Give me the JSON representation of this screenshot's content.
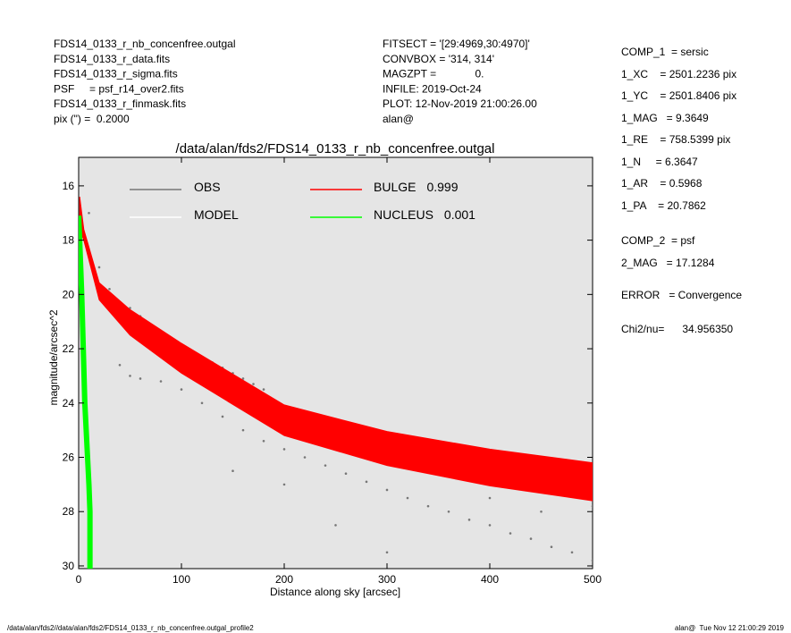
{
  "header": {
    "left": [
      "FDS14_0133_r_nb_concenfree.outgal",
      "FDS14_0133_r_data.fits",
      "FDS14_0133_r_sigma.fits",
      "PSF     = psf_r14_over2.fits",
      "FDS14_0133_r_finmask.fits",
      "pix (\") =  0.2000"
    ],
    "middle": [
      "FITSECT = '[29:4969,30:4970]'",
      "CONVBOX = '314, 314'",
      "MAGZPT =             0.",
      "INFILE: 2019-Oct-24",
      "PLOT: 12-Nov-2019 21:00:26.00",
      "alan@"
    ],
    "right": [
      "COMP_1  = sersic",
      "1_XC    = 2501.2236 pix",
      "1_YC    = 2501.8406 pix",
      "1_MAG   = 9.3649",
      "1_RE    = 758.5399 pix",
      "1_N     = 6.3647",
      "1_AR    = 0.5968",
      "1_PA    = 20.7862",
      "COMP_2  = psf",
      "2_MAG   = 17.1284",
      "ERROR   = Convergence",
      "Chi2/nu=      34.956350"
    ]
  },
  "footer": {
    "left": "/data/alan/fds2//data/alan/fds2/FDS14_0133_r_nb_concenfree.outgal_profile2",
    "right": "alan@  Tue Nov 12 21:00:29 2019"
  },
  "chart_data": {
    "type": "scatter",
    "title": "/data/alan/fds2/FDS14_0133_r_nb_concenfree.outgal",
    "xlabel": "Distance along sky [arcsec]",
    "ylabel": "magnitude/arcsec^2",
    "xlim": [
      0,
      500
    ],
    "xticks": [
      0,
      100,
      200,
      300,
      400,
      500
    ],
    "ylim": [
      30.1,
      14.95
    ],
    "yticks": [
      16,
      18,
      20,
      22,
      24,
      26,
      28,
      30
    ],
    "background": "#e5e5e5",
    "series": [
      {
        "name": "OBS",
        "color": "#777777",
        "x": [
          40,
          50,
          60,
          70,
          80,
          90,
          100,
          110,
          120,
          130,
          140,
          150,
          160,
          170,
          180,
          40,
          50,
          60,
          80,
          100,
          120,
          140,
          160,
          180,
          200,
          220,
          240,
          260,
          280,
          300,
          320,
          340,
          360,
          380,
          400,
          420,
          440,
          460,
          480,
          500,
          200,
          250,
          300,
          350,
          400,
          450,
          500,
          150,
          250,
          350,
          10,
          20,
          30,
          120,
          200
        ],
        "values": [
          20.5,
          20.5,
          20.8,
          21.1,
          21.4,
          21.6,
          21.9,
          22.1,
          22.3,
          22.5,
          22.7,
          22.9,
          23.1,
          23.3,
          23.5,
          22.6,
          23.0,
          23.1,
          23.2,
          23.5,
          24.0,
          24.5,
          25.0,
          25.4,
          25.7,
          26.0,
          26.3,
          26.6,
          26.9,
          27.2,
          27.5,
          27.8,
          28.0,
          28.3,
          28.5,
          28.8,
          29.0,
          29.3,
          29.5,
          29.8,
          27.0,
          28.5,
          29.5,
          26.5,
          27.5,
          28.0,
          27.8,
          26.5,
          24.8,
          25.8,
          17.0,
          19.0,
          19.8,
          23.0,
          24.3
        ]
      },
      {
        "name": "MODEL",
        "color": "#ffffff"
      },
      {
        "name": "BULGE",
        "fraction": 0.999,
        "color": "#ff0000",
        "x": [
          1,
          5,
          20,
          50,
          100,
          200,
          300,
          400,
          500
        ],
        "values": [
          16.4,
          17.6,
          19.57,
          20.56,
          21.8,
          24.07,
          25.05,
          25.7,
          26.2
        ],
        "values_low": [
          17.6,
          18.0,
          20.2,
          21.5,
          22.9,
          25.2,
          26.3,
          27.05,
          27.6
        ]
      },
      {
        "name": "NUCLEUS",
        "fraction": 0.001,
        "color": "#00ff00",
        "x": [
          0,
          1,
          3,
          6,
          10,
          11,
          11
        ],
        "values": [
          17.1,
          18,
          20,
          24,
          27,
          28,
          30.1
        ]
      }
    ]
  }
}
